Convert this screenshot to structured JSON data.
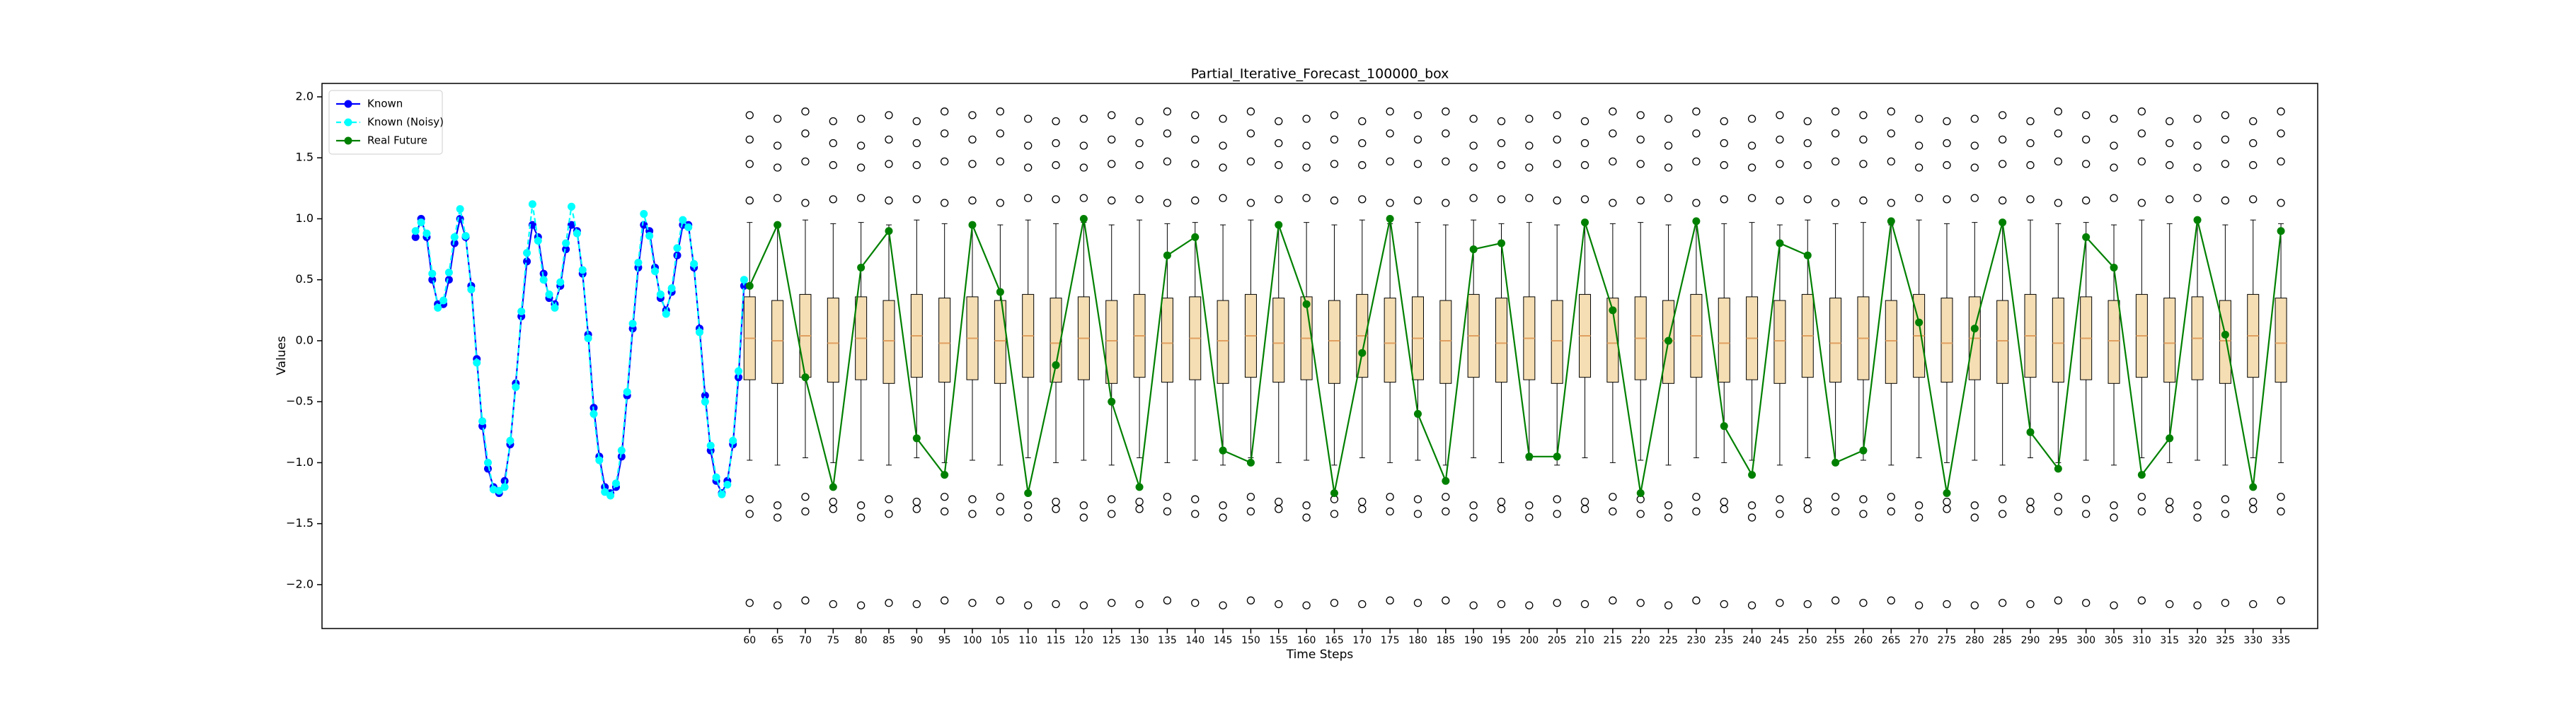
{
  "chart_data": {
    "type": "boxplot",
    "title": "Partial_Iterative_Forecast_100000_box",
    "x_label": "Time Steps",
    "y_label": "Values",
    "xlim": [
      -16.8,
      341.6
    ],
    "ylim": [
      -2.36,
      2.11
    ],
    "yticks": [
      {
        "value": -2,
        "label": "−2.0"
      },
      {
        "value": -1.5,
        "label": "−1.5"
      },
      {
        "value": -1,
        "label": "−1.0"
      },
      {
        "value": -0.5,
        "label": "−0.5"
      },
      {
        "value": 0,
        "label": "0.0"
      },
      0.5,
      {
        "value": 1,
        "label": "1.0"
      },
      1.5,
      {
        "value": 2,
        "label": "2.0"
      }
    ],
    "legend": "upper left",
    "x": [
      0,
      1,
      2,
      3,
      4,
      5,
      6,
      7,
      8,
      9,
      10,
      11,
      12,
      13,
      14,
      15,
      16,
      17,
      18,
      19,
      20,
      21,
      22,
      23,
      24,
      25,
      26,
      27,
      28,
      29,
      30,
      31,
      32,
      33,
      34,
      35,
      36,
      37,
      38,
      39,
      40,
      41,
      42,
      43,
      44,
      45,
      46,
      47,
      48,
      49,
      50,
      51,
      52,
      53,
      54,
      55,
      56,
      57,
      58,
      59
    ],
    "series": [
      {
        "name": "Known",
        "color": "#0000ff",
        "values": [
          0.85,
          1.0,
          0.85,
          0.5,
          0.3,
          0.3,
          0.5,
          0.8,
          1.0,
          0.85,
          0.45,
          -0.15,
          -0.7,
          -1.05,
          -1.2,
          -1.25,
          -1.15,
          -0.85,
          -0.35,
          0.2,
          0.65,
          0.95,
          0.85,
          0.55,
          0.35,
          0.3,
          0.45,
          0.75,
          0.95,
          0.9,
          0.55,
          0.05,
          -0.55,
          -0.95,
          -1.2,
          -1.25,
          -1.2,
          -0.95,
          -0.45,
          0.1,
          0.6,
          0.95,
          0.9,
          0.6,
          0.35,
          0.25,
          0.4,
          0.7,
          0.95,
          0.95,
          0.6,
          0.1,
          -0.45,
          -0.9,
          -1.15,
          -1.25,
          -1.15,
          -0.85,
          -0.3,
          0.45
        ]
      },
      {
        "name": "Known (Noisy)",
        "color": "#00ffff",
        "dashed": true,
        "values": [
          0.9,
          0.97,
          0.88,
          0.55,
          0.27,
          0.33,
          0.56,
          0.85,
          1.08,
          0.86,
          0.42,
          -0.18,
          -0.66,
          -1.0,
          -1.22,
          -1.23,
          -1.2,
          -0.82,
          -0.38,
          0.24,
          0.72,
          1.12,
          0.82,
          0.5,
          0.38,
          0.27,
          0.48,
          0.8,
          1.1,
          0.88,
          0.58,
          0.02,
          -0.6,
          -0.98,
          -1.24,
          -1.27,
          -1.17,
          -0.9,
          -0.42,
          0.14,
          0.64,
          1.04,
          0.86,
          0.57,
          0.38,
          0.22,
          0.43,
          0.76,
          0.99,
          0.93,
          0.63,
          0.07,
          -0.5,
          -0.86,
          -1.12,
          -1.26,
          -1.18,
          -0.82,
          -0.25,
          0.5
        ]
      },
      {
        "name": "Real Future",
        "color": "#008000",
        "values": [
          0.45,
          0.95,
          -0.3,
          -1.2,
          0.6,
          0.9,
          -0.8,
          -1.1,
          0.95,
          0.4,
          -1.25,
          -0.2,
          1.0,
          -0.5,
          -1.2,
          0.7,
          0.85,
          -0.9,
          -1.0,
          0.95,
          0.3,
          -1.25,
          -0.1,
          1.0,
          -0.6,
          -1.15,
          0.75,
          0.8,
          -0.95,
          -0.95,
          0.97,
          0.25,
          -1.25,
          0.0,
          0.98,
          -0.7,
          -1.1,
          0.8,
          0.7,
          -1.0,
          -0.9,
          0.98,
          0.15,
          -1.25,
          0.1,
          0.97,
          -0.75,
          -1.05,
          0.85,
          0.6,
          -1.1,
          -0.8,
          0.99,
          0.05,
          -1.2,
          0.9
        ]
      }
    ],
    "boxes": {
      "box_color": "#f5deb3",
      "median_color": "#e0a060",
      "positions": [
        60,
        65,
        70,
        75,
        80,
        85,
        90,
        95,
        100,
        105,
        110,
        115,
        120,
        125,
        130,
        135,
        140,
        145,
        150,
        155,
        160,
        165,
        170,
        175,
        180,
        185,
        190,
        195,
        200,
        205,
        210,
        215,
        220,
        225,
        230,
        235,
        240,
        245,
        250,
        255,
        260,
        265,
        270,
        275,
        280,
        285,
        290,
        295,
        300,
        305,
        310,
        315,
        320,
        325,
        330,
        335
      ],
      "stats": [
        [
          -0.98,
          -0.32,
          0.02,
          0.36,
          0.97
        ],
        [
          -1.02,
          -0.35,
          0.0,
          0.33,
          0.95
        ],
        [
          -0.96,
          -0.3,
          0.04,
          0.38,
          0.99
        ],
        [
          -1.0,
          -0.34,
          -0.02,
          0.35,
          0.96
        ],
        [
          -0.98,
          -0.32,
          0.02,
          0.36,
          0.97
        ],
        [
          -1.02,
          -0.35,
          0.0,
          0.33,
          0.95
        ],
        [
          -0.96,
          -0.3,
          0.04,
          0.38,
          0.99
        ],
        [
          -1.0,
          -0.34,
          -0.02,
          0.35,
          0.96
        ],
        [
          -0.98,
          -0.32,
          0.02,
          0.36,
          0.97
        ],
        [
          -1.02,
          -0.35,
          0.0,
          0.33,
          0.95
        ],
        [
          -0.96,
          -0.3,
          0.04,
          0.38,
          0.99
        ],
        [
          -1.0,
          -0.34,
          -0.02,
          0.35,
          0.96
        ],
        [
          -0.98,
          -0.32,
          0.02,
          0.36,
          0.97
        ],
        [
          -1.02,
          -0.35,
          0.0,
          0.33,
          0.95
        ],
        [
          -0.96,
          -0.3,
          0.04,
          0.38,
          0.99
        ],
        [
          -1.0,
          -0.34,
          -0.02,
          0.35,
          0.96
        ],
        [
          -0.98,
          -0.32,
          0.02,
          0.36,
          0.97
        ],
        [
          -1.02,
          -0.35,
          0.0,
          0.33,
          0.95
        ],
        [
          -0.96,
          -0.3,
          0.04,
          0.38,
          0.99
        ],
        [
          -1.0,
          -0.34,
          -0.02,
          0.35,
          0.96
        ],
        [
          -0.98,
          -0.32,
          0.02,
          0.36,
          0.97
        ],
        [
          -1.02,
          -0.35,
          0.0,
          0.33,
          0.95
        ],
        [
          -0.96,
          -0.3,
          0.04,
          0.38,
          0.99
        ],
        [
          -1.0,
          -0.34,
          -0.02,
          0.35,
          0.96
        ],
        [
          -0.98,
          -0.32,
          0.02,
          0.36,
          0.97
        ],
        [
          -1.02,
          -0.35,
          0.0,
          0.33,
          0.95
        ],
        [
          -0.96,
          -0.3,
          0.04,
          0.38,
          0.99
        ],
        [
          -1.0,
          -0.34,
          -0.02,
          0.35,
          0.96
        ],
        [
          -0.98,
          -0.32,
          0.02,
          0.36,
          0.97
        ],
        [
          -1.02,
          -0.35,
          0.0,
          0.33,
          0.95
        ],
        [
          -0.96,
          -0.3,
          0.04,
          0.38,
          0.99
        ],
        [
          -1.0,
          -0.34,
          -0.02,
          0.35,
          0.96
        ],
        [
          -0.98,
          -0.32,
          0.02,
          0.36,
          0.97
        ],
        [
          -1.02,
          -0.35,
          0.0,
          0.33,
          0.95
        ],
        [
          -0.96,
          -0.3,
          0.04,
          0.38,
          0.99
        ],
        [
          -1.0,
          -0.34,
          -0.02,
          0.35,
          0.96
        ],
        [
          -0.98,
          -0.32,
          0.02,
          0.36,
          0.97
        ],
        [
          -1.02,
          -0.35,
          0.0,
          0.33,
          0.95
        ],
        [
          -0.96,
          -0.3,
          0.04,
          0.38,
          0.99
        ],
        [
          -1.0,
          -0.34,
          -0.02,
          0.35,
          0.96
        ],
        [
          -0.98,
          -0.32,
          0.02,
          0.36,
          0.97
        ],
        [
          -1.02,
          -0.35,
          0.0,
          0.33,
          0.95
        ],
        [
          -0.96,
          -0.3,
          0.04,
          0.38,
          0.99
        ],
        [
          -1.0,
          -0.34,
          -0.02,
          0.35,
          0.96
        ],
        [
          -0.98,
          -0.32,
          0.02,
          0.36,
          0.97
        ],
        [
          -1.02,
          -0.35,
          0.0,
          0.33,
          0.95
        ],
        [
          -0.96,
          -0.3,
          0.04,
          0.38,
          0.99
        ],
        [
          -1.0,
          -0.34,
          -0.02,
          0.35,
          0.96
        ],
        [
          -0.98,
          -0.32,
          0.02,
          0.36,
          0.97
        ],
        [
          -1.02,
          -0.35,
          0.0,
          0.33,
          0.95
        ],
        [
          -0.96,
          -0.3,
          0.04,
          0.38,
          0.99
        ],
        [
          -1.0,
          -0.34,
          -0.02,
          0.35,
          0.96
        ],
        [
          -0.98,
          -0.32,
          0.02,
          0.36,
          0.97
        ],
        [
          -1.02,
          -0.35,
          0.0,
          0.33,
          0.95
        ],
        [
          -0.96,
          -0.3,
          0.04,
          0.38,
          0.99
        ],
        [
          -1.0,
          -0.34,
          -0.02,
          0.35,
          0.96
        ]
      ],
      "fliers": [
        [
          1.85,
          1.65,
          1.45,
          1.15,
          -1.3,
          -1.42,
          -2.15
        ],
        [
          1.82,
          1.6,
          1.42,
          1.17,
          -1.35,
          -1.45,
          -2.17
        ],
        [
          1.88,
          1.7,
          1.47,
          1.13,
          -1.28,
          -1.4,
          -2.13
        ],
        [
          1.8,
          1.62,
          1.44,
          1.16,
          -1.32,
          -1.38,
          -2.16
        ],
        [
          1.82,
          1.6,
          1.42,
          1.17,
          -1.35,
          -1.45,
          -2.17
        ],
        [
          1.85,
          1.65,
          1.45,
          1.15,
          -1.3,
          -1.42,
          -2.15
        ],
        [
          1.8,
          1.62,
          1.44,
          1.16,
          -1.32,
          -1.38,
          -2.16
        ],
        [
          1.88,
          1.7,
          1.47,
          1.13,
          -1.28,
          -1.4,
          -2.13
        ],
        [
          1.85,
          1.65,
          1.45,
          1.15,
          -1.3,
          -1.42,
          -2.15
        ],
        [
          1.88,
          1.7,
          1.47,
          1.13,
          -1.28,
          -1.4,
          -2.13
        ],
        [
          1.82,
          1.6,
          1.42,
          1.17,
          -1.35,
          -1.45,
          -2.17
        ],
        [
          1.8,
          1.62,
          1.44,
          1.16,
          -1.32,
          -1.38,
          -2.16
        ],
        [
          1.82,
          1.6,
          1.42,
          1.17,
          -1.35,
          -1.45,
          -2.17
        ],
        [
          1.85,
          1.65,
          1.45,
          1.15,
          -1.3,
          -1.42,
          -2.15
        ],
        [
          1.8,
          1.62,
          1.44,
          1.16,
          -1.32,
          -1.38,
          -2.16
        ],
        [
          1.88,
          1.7,
          1.47,
          1.13,
          -1.28,
          -1.4,
          -2.13
        ],
        [
          1.85,
          1.65,
          1.45,
          1.15,
          -1.3,
          -1.42,
          -2.15
        ],
        [
          1.82,
          1.6,
          1.42,
          1.17,
          -1.35,
          -1.45,
          -2.17
        ],
        [
          1.88,
          1.7,
          1.47,
          1.13,
          -1.28,
          -1.4,
          -2.13
        ],
        [
          1.8,
          1.62,
          1.44,
          1.16,
          -1.32,
          -1.38,
          -2.16
        ],
        [
          1.82,
          1.6,
          1.42,
          1.17,
          -1.35,
          -1.45,
          -2.17
        ],
        [
          1.85,
          1.65,
          1.45,
          1.15,
          -1.3,
          -1.42,
          -2.15
        ],
        [
          1.8,
          1.62,
          1.44,
          1.16,
          -1.32,
          -1.38,
          -2.16
        ],
        [
          1.88,
          1.7,
          1.47,
          1.13,
          -1.28,
          -1.4,
          -2.13
        ],
        [
          1.85,
          1.65,
          1.45,
          1.15,
          -1.3,
          -1.42,
          -2.15
        ],
        [
          1.88,
          1.7,
          1.47,
          1.13,
          -1.28,
          -1.4,
          -2.13
        ],
        [
          1.82,
          1.6,
          1.42,
          1.17,
          -1.35,
          -1.45,
          -2.17
        ],
        [
          1.8,
          1.62,
          1.44,
          1.16,
          -1.32,
          -1.38,
          -2.16
        ],
        [
          1.82,
          1.6,
          1.42,
          1.17,
          -1.35,
          -1.45,
          -2.17
        ],
        [
          1.85,
          1.65,
          1.45,
          1.15,
          -1.3,
          -1.42,
          -2.15
        ],
        [
          1.8,
          1.62,
          1.44,
          1.16,
          -1.32,
          -1.38,
          -2.16
        ],
        [
          1.88,
          1.7,
          1.47,
          1.13,
          -1.28,
          -1.4,
          -2.13
        ],
        [
          1.85,
          1.65,
          1.45,
          1.15,
          -1.3,
          -1.42,
          -2.15
        ],
        [
          1.82,
          1.6,
          1.42,
          1.17,
          -1.35,
          -1.45,
          -2.17
        ],
        [
          1.88,
          1.7,
          1.47,
          1.13,
          -1.28,
          -1.4,
          -2.13
        ],
        [
          1.8,
          1.62,
          1.44,
          1.16,
          -1.32,
          -1.38,
          -2.16
        ],
        [
          1.82,
          1.6,
          1.42,
          1.17,
          -1.35,
          -1.45,
          -2.17
        ],
        [
          1.85,
          1.65,
          1.45,
          1.15,
          -1.3,
          -1.42,
          -2.15
        ],
        [
          1.8,
          1.62,
          1.44,
          1.16,
          -1.32,
          -1.38,
          -2.16
        ],
        [
          1.88,
          1.7,
          1.47,
          1.13,
          -1.28,
          -1.4,
          -2.13
        ],
        [
          1.85,
          1.65,
          1.45,
          1.15,
          -1.3,
          -1.42,
          -2.15
        ],
        [
          1.88,
          1.7,
          1.47,
          1.13,
          -1.28,
          -1.4,
          -2.13
        ],
        [
          1.82,
          1.6,
          1.42,
          1.17,
          -1.35,
          -1.45,
          -2.17
        ],
        [
          1.8,
          1.62,
          1.44,
          1.16,
          -1.32,
          -1.38,
          -2.16
        ],
        [
          1.82,
          1.6,
          1.42,
          1.17,
          -1.35,
          -1.45,
          -2.17
        ],
        [
          1.85,
          1.65,
          1.45,
          1.15,
          -1.3,
          -1.42,
          -2.15
        ],
        [
          1.8,
          1.62,
          1.44,
          1.16,
          -1.32,
          -1.38,
          -2.16
        ],
        [
          1.88,
          1.7,
          1.47,
          1.13,
          -1.28,
          -1.4,
          -2.13
        ],
        [
          1.85,
          1.65,
          1.45,
          1.15,
          -1.3,
          -1.42,
          -2.15
        ],
        [
          1.82,
          1.6,
          1.42,
          1.17,
          -1.35,
          -1.45,
          -2.17
        ],
        [
          1.88,
          1.7,
          1.47,
          1.13,
          -1.28,
          -1.4,
          -2.13
        ],
        [
          1.8,
          1.62,
          1.44,
          1.16,
          -1.32,
          -1.38,
          -2.16
        ],
        [
          1.82,
          1.6,
          1.42,
          1.17,
          -1.35,
          -1.45,
          -2.17
        ],
        [
          1.85,
          1.65,
          1.45,
          1.15,
          -1.3,
          -1.42,
          -2.15
        ],
        [
          1.8,
          1.62,
          1.44,
          1.16,
          -1.32,
          -1.38,
          -2.16
        ],
        [
          1.88,
          1.7,
          1.47,
          1.13,
          -1.28,
          -1.4,
          -2.13
        ]
      ]
    }
  }
}
